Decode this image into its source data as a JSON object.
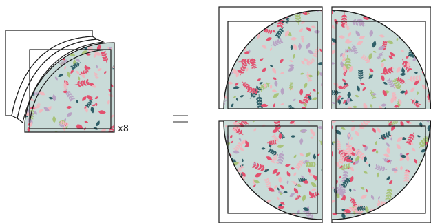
{
  "diagram": {
    "count_label": "x8",
    "equals_symbol": "equals-icon",
    "fabric_icon": "floral-fabric-pattern-icon",
    "colors": {
      "fabric_background": "#c9dbd8",
      "leaf_pink": "#e2506e",
      "leaf_light_pink": "#f0b8bf",
      "leaf_teal": "#2f5f68",
      "leaf_lavender": "#b8a3c4",
      "leaf_green": "#a8c37a",
      "outline": "#1a1a1a",
      "paper": "#ffffff"
    }
  }
}
